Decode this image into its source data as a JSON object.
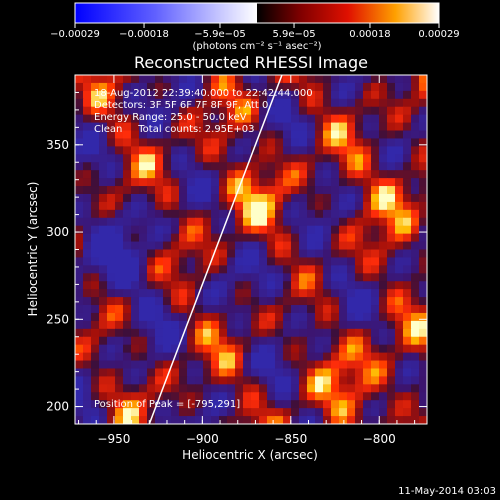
{
  "chart_data": {
    "type": "heatmap",
    "title": "Reconstructed RHESSI Image",
    "xlabel": "Heliocentric X (arcsec)",
    "ylabel": "Heliocentric Y (arcsec)",
    "xlim": [
      -972,
      -773
    ],
    "ylim": [
      190,
      390
    ],
    "x_ticks": [
      -950,
      -900,
      -850,
      -800
    ],
    "x_tick_labels": [
      "−950",
      "−900",
      "−850",
      "−800"
    ],
    "y_ticks": [
      200,
      250,
      300,
      350
    ],
    "y_tick_labels": [
      "200",
      "250",
      "300",
      "350"
    ],
    "colorbar": {
      "range": [
        -0.00029,
        0.00029
      ],
      "ticks": [
        -0.00029,
        -0.00018,
        -5.9e-05,
        5.9e-05,
        0.00018,
        0.00029
      ],
      "tick_labels": [
        "−0.00029",
        "−0.00018",
        "−5.9e−05",
        "5.9e−05",
        "0.00018",
        "0.00029"
      ],
      "unit_label": "(photons cm⁻² s⁻¹ asec⁻²)"
    },
    "annotations": {
      "time_range": "18-Aug-2012 22:39:40.000 to 22:42:44.000",
      "detectors": "Detectors: 3F 5F 6F 7F 8F 9F, Att 0",
      "energy_range": "Energy Range: 25.0 - 50.0 keV",
      "method": "Clean     Total counts: 2.95E+03",
      "peak": "Position of Peak = [-795,291]"
    },
    "limb_line": {
      "x1": -930,
      "y1": 190,
      "x2": -855,
      "y2": 390
    },
    "peak_position": [
      -795,
      291
    ],
    "grid": false
  },
  "footer": {
    "date": "11-May-2014 03:03"
  },
  "colors": {
    "background": "#000000",
    "foreground": "#ffffff"
  }
}
